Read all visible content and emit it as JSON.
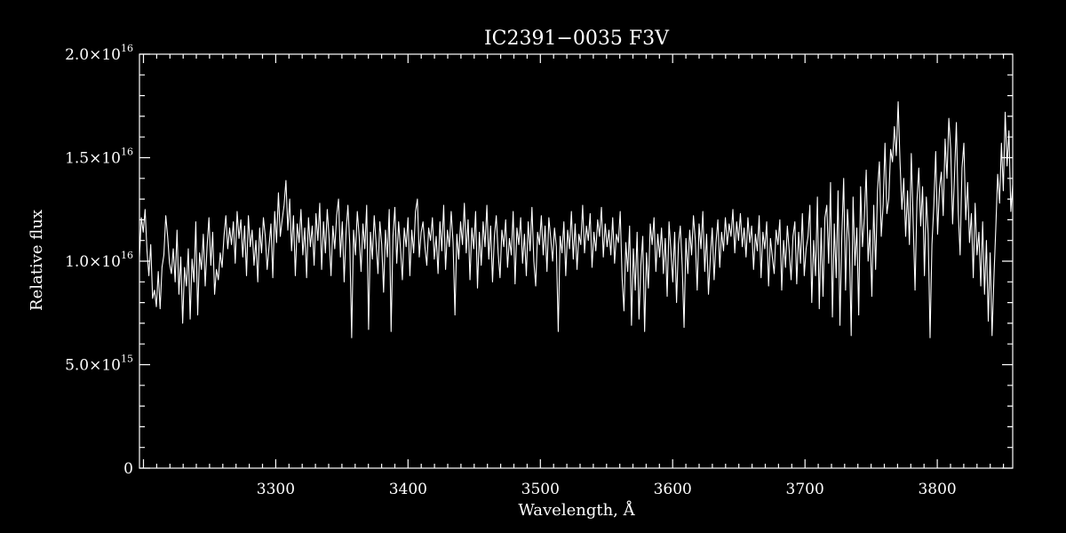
{
  "chart_data": {
    "type": "line",
    "title": "IC2391−0035   F3V",
    "xlabel": "Wavelength, Å",
    "ylabel": "Relative flux",
    "xlim": [
      3197,
      3857
    ],
    "ylim": [
      0,
      2e+16
    ],
    "x_ticks": [
      {
        "value": 3300,
        "label": "3300"
      },
      {
        "value": 3400,
        "label": "3400"
      },
      {
        "value": 3500,
        "label": "3500"
      },
      {
        "value": 3600,
        "label": "3600"
      },
      {
        "value": 3700,
        "label": "3700"
      },
      {
        "value": 3800,
        "label": "3800"
      }
    ],
    "y_ticks": [
      {
        "value": 0,
        "mantissa": "0",
        "exponent": ""
      },
      {
        "value": 5000000000000000.0,
        "mantissa": "5.0×10",
        "exponent": "15"
      },
      {
        "value": 1e+16,
        "mantissa": "1.0×10",
        "exponent": "16"
      },
      {
        "value": 1.5e+16,
        "mantissa": "1.5×10",
        "exponent": "16"
      },
      {
        "value": 2e+16,
        "mantissa": "2.0×10",
        "exponent": "16"
      }
    ],
    "grid": false,
    "legend": "none",
    "colors": {
      "background": "#000000",
      "foreground": "#ffffff"
    },
    "series": [
      {
        "x_start": 3197,
        "x_end": 3857,
        "y": [
          1.02e+16,
          1.21e+16,
          1.14e+16,
          1.25e+16,
          1.05e+16,
          9300000000000000.0,
          1.08e+16,
          8200000000000000.0,
          8600000000000000.0,
          7800000000000000.0,
          9500000000000000.0,
          7700000000000000.0,
          9700000000000000.0,
          1.03e+16,
          1.22e+16,
          1.12e+16,
          9900000000000000.0,
          9400000000000000.0,
          1.06e+16,
          9000000000000000.0,
          1.15e+16,
          8400000000000000.0,
          1.02e+16,
          7000000000000000.0,
          9700000000000000.0,
          8800000000000000.0,
          1.06e+16,
          7200000000000000.0,
          1.01e+16,
          9000000000000000.0,
          1.19e+16,
          7400000000000000.0,
          1.04e+16,
          9600000000000000.0,
          1.13e+16,
          8800000000000000.0,
          1.07e+16,
          1.21e+16,
          9800000000000000.0,
          1.14e+16,
          8400000000000000.0,
          9600000000000000.0,
          9100000000000000.0,
          1.04e+16,
          9700000000000000.0,
          1.12e+16,
          1.22e+16,
          1.06e+16,
          1.16e+16,
          1.08e+16,
          1.19e+16,
          9900000000000000.0,
          1.24e+16,
          1.11e+16,
          1.2e+16,
          1.02e+16,
          1.17e+16,
          9300000000000000.0,
          1.22e+16,
          1.07e+16,
          1.15e+16,
          9800000000000000.0,
          1.1e+16,
          9000000000000000.0,
          1.16e+16,
          1.04e+16,
          1.21e+16,
          1.12e+16,
          9600000000000000.0,
          1.07e+16,
          1.18e+16,
          9200000000000000.0,
          1.24e+16,
          1.09e+16,
          1.33e+16,
          1.12e+16,
          1.2e+16,
          1.27e+16,
          1.39e+16,
          1.15e+16,
          1.3e+16,
          1.05e+16,
          1.22e+16,
          9300000000000000.0,
          1.18e+16,
          1.09e+16,
          1.25e+16,
          1.03e+16,
          1.16e+16,
          9200000000000000.0,
          1.21e+16,
          1.07e+16,
          1.17e+16,
          9800000000000000.0,
          1.23e+16,
          1.1e+16,
          1.28e+16,
          9600000000000000.0,
          1.19e+16,
          1.04e+16,
          1.25e+16,
          1.11e+16,
          9300000000000000.0,
          1.17e+16,
          1.06e+16,
          1.22e+16,
          1.3e+16,
          1.02e+16,
          1.19e+16,
          9000000000000000.0,
          1.14e+16,
          1.27e+16,
          1.08e+16,
          6300000000000000.0,
          1.15e+16,
          1.03e+16,
          1.24e+16,
          1.12e+16,
          9500000000000000.0,
          1.18e+16,
          1.06e+16,
          1.27e+16,
          6700000000000000.0,
          1.14e+16,
          1.01e+16,
          1.22e+16,
          1.09e+16,
          9400000000000000.0,
          1.19e+16,
          1.08e+16,
          8500000000000000.0,
          1.15e+16,
          1.02e+16,
          1.25e+16,
          6600000000000000.0,
          1.12e+16,
          1.26e+16,
          9900000000000000.0,
          1.19e+16,
          1.06e+16,
          9100000000000000.0,
          1.16e+16,
          1.07e+16,
          1.21e+16,
          9300000000000000.0,
          1.15e+16,
          1.04e+16,
          1.24e+16,
          1.3e+16,
          1.02e+16,
          1.14e+16,
          1.19e+16,
          1.07e+16,
          9800000000000000.0,
          1.16e+16,
          1.1e+16,
          1.21e+16,
          1.01e+16,
          1.12e+16,
          9400000000000000.0,
          1.19e+16,
          1.05e+16,
          1.27e+16,
          9600000000000000.0,
          1.15e+16,
          1.07e+16,
          1.24e+16,
          1.09e+16,
          7400000000000000.0,
          1.13e+16,
          1.01e+16,
          1.19e+16,
          1.08e+16,
          1.28e+16,
          1.04e+16,
          1.2e+16,
          9100000000000000.0,
          1.16e+16,
          1.06e+16,
          1.24e+16,
          8700000000000000.0,
          1.14e+16,
          9800000000000000.0,
          1.19e+16,
          1.07e+16,
          1.27e+16,
          1.01e+16,
          1.17e+16,
          9000000000000000.0,
          1.12e+16,
          1.22e+16,
          1.04e+16,
          9200000000000000.0,
          1.15e+16,
          1.07e+16,
          1.2e+16,
          9700000000000000.0,
          1.11e+16,
          1.03e+16,
          1.24e+16,
          8900000000000000.0,
          1.16e+16,
          1.08e+16,
          1.21e+16,
          9900000000000000.0,
          1.13e+16,
          9300000000000000.0,
          1.19e+16,
          1.05e+16,
          1.26e+16,
          1e+16,
          8800000000000000.0,
          1.14e+16,
          1.08e+16,
          1.22e+16,
          1.03e+16,
          1.17e+16,
          9500000000000000.0,
          1.21e+16,
          1.11e+16,
          1e+16,
          1.16e+16,
          1.07e+16,
          6600000000000000.0,
          1.12e+16,
          1.04e+16,
          1.19e+16,
          9300000000000000.0,
          1.15e+16,
          1.06e+16,
          1.24e+16,
          1.01e+16,
          1.18e+16,
          9600000000000000.0,
          1.13e+16,
          1.08e+16,
          1.27e+16,
          1.04e+16,
          1.17e+16,
          1.1e+16,
          1.23e+16,
          9700000000000000.0,
          1.14e+16,
          1.05e+16,
          1.2e+16,
          1.12e+16,
          1.26e+16,
          1.02e+16,
          1.18e+16,
          1.07e+16,
          1.15e+16,
          1.03e+16,
          1.21e+16,
          9900000000000000.0,
          1.13e+16,
          1.09e+16,
          1.24e+16,
          9200000000000000.0,
          7600000000000000.0,
          1.09e+16,
          9500000000000000.0,
          1.17e+16,
          6900000000000000.0,
          1.06e+16,
          8600000000000000.0,
          1.14e+16,
          7200000000000000.0,
          9800000000000000.0,
          1.12e+16,
          6600000000000000.0,
          1.04e+16,
          8700000000000000.0,
          1.18e+16,
          1.08e+16,
          1.21e+16,
          9500000000000000.0,
          1.13e+16,
          1.02e+16,
          1.16e+16,
          9400000000000000.0,
          1.11e+16,
          8300000000000000.0,
          1.19e+16,
          1.05e+16,
          9000000000000000.0,
          1.14e+16,
          8000000000000000.0,
          1.08e+16,
          1.17e+16,
          9800000000000000.0,
          6800000000000000.0,
          1.11e+16,
          9400000000000000.0,
          1.15e+16,
          1.03e+16,
          1.22e+16,
          1.1e+16,
          8600000000000000.0,
          1.18e+16,
          1.06e+16,
          1.24e+16,
          9500000000000000.0,
          1.13e+16,
          8400000000000000.0,
          1.02e+16,
          1.16e+16,
          9100000000000000.0,
          1.09e+16,
          1.2e+16,
          9700000000000000.0,
          1.14e+16,
          1.05e+16,
          1.21e+16,
          1.08e+16,
          1.18e+16,
          1.12e+16,
          1.25e+16,
          1.04e+16,
          1.19e+16,
          1.1e+16,
          1.23e+16,
          1.07e+16,
          1.16e+16,
          1.02e+16,
          1.21e+16,
          1.09e+16,
          1.17e+16,
          9600000000000000.0,
          1.13e+16,
          1.05e+16,
          1.22e+16,
          9200000000000000.0,
          1.14e+16,
          1.06e+16,
          1.19e+16,
          8800000000000000.0,
          1.11e+16,
          1.02e+16,
          9400000000000000.0,
          1.15e+16,
          1.08e+16,
          1.2e+16,
          8600000000000000.0,
          1.1e+16,
          9700000000000000.0,
          1.17e+16,
          1.05e+16,
          9100000000000000.0,
          1.12e+16,
          1.19e+16,
          8900000000000000.0,
          1.14e+16,
          9900000000000000.0,
          1.23e+16,
          9300000000000000.0,
          1.06e+16,
          1.12e+16,
          1.27e+16,
          8000000000000000.0,
          1.1e+16,
          9300000000000000.0,
          1.31e+16,
          7700000000000000.0,
          1.16e+16,
          8300000000000000.0,
          1.21e+16,
          1.27e+16,
          9900000000000000.0,
          1.38e+16,
          7300000000000000.0,
          1.18e+16,
          9200000000000000.0,
          1.34e+16,
          6900000000000000.0,
          1.12e+16,
          1.4e+16,
          8600000000000000.0,
          1.25e+16,
          1.09e+16,
          6400000000000000.0,
          1.31e+16,
          9800000000000000.0,
          1.16e+16,
          7400000000000000.0,
          1.36e+16,
          1.07e+16,
          1.21e+16,
          1.44e+16,
          1e+16,
          1.15e+16,
          8300000000000000.0,
          1.27e+16,
          9600000000000000.0,
          1.34e+16,
          1.48e+16,
          1.12e+16,
          1.27e+16,
          1.57e+16,
          1.23e+16,
          1.3e+16,
          1.54e+16,
          1.48e+16,
          1.65e+16,
          1.51e+16,
          1.77e+16,
          1.48e+16,
          1.25e+16,
          1.4e+16,
          1.12e+16,
          1.34e+16,
          1.08e+16,
          1.52e+16,
          1.19e+16,
          8600000000000000.0,
          1.29e+16,
          1.45e+16,
          1.17e+16,
          1.36e+16,
          9300000000000000.0,
          1.31e+16,
          1.13e+16,
          6300000000000000.0,
          1.08e+16,
          1.27e+16,
          1.53e+16,
          1.13e+16,
          1.35e+16,
          1.43e+16,
          1.22e+16,
          1.59e+16,
          1.4e+16,
          1.69e+16,
          1.54e+16,
          1.18e+16,
          1.41e+16,
          1.67e+16,
          1.24e+16,
          1.03e+16,
          1.45e+16,
          1.57e+16,
          1.2e+16,
          1.38e+16,
          1.09e+16,
          1.23e+16,
          9200000000000000.0,
          1.28e+16,
          1.03e+16,
          1.14e+16,
          8800000000000000.0,
          1.19e+16,
          8400000000000000.0,
          1.1e+16,
          7100000000000000.0,
          1.04e+16,
          6400000000000000.0,
          9200000000000000.0,
          1.16e+16,
          1.42e+16,
          1.28e+16,
          1.57e+16,
          1.34e+16,
          1.72e+16,
          1.46e+16,
          1.63e+16,
          1.24e+16,
          1.37e+16
        ]
      }
    ]
  }
}
